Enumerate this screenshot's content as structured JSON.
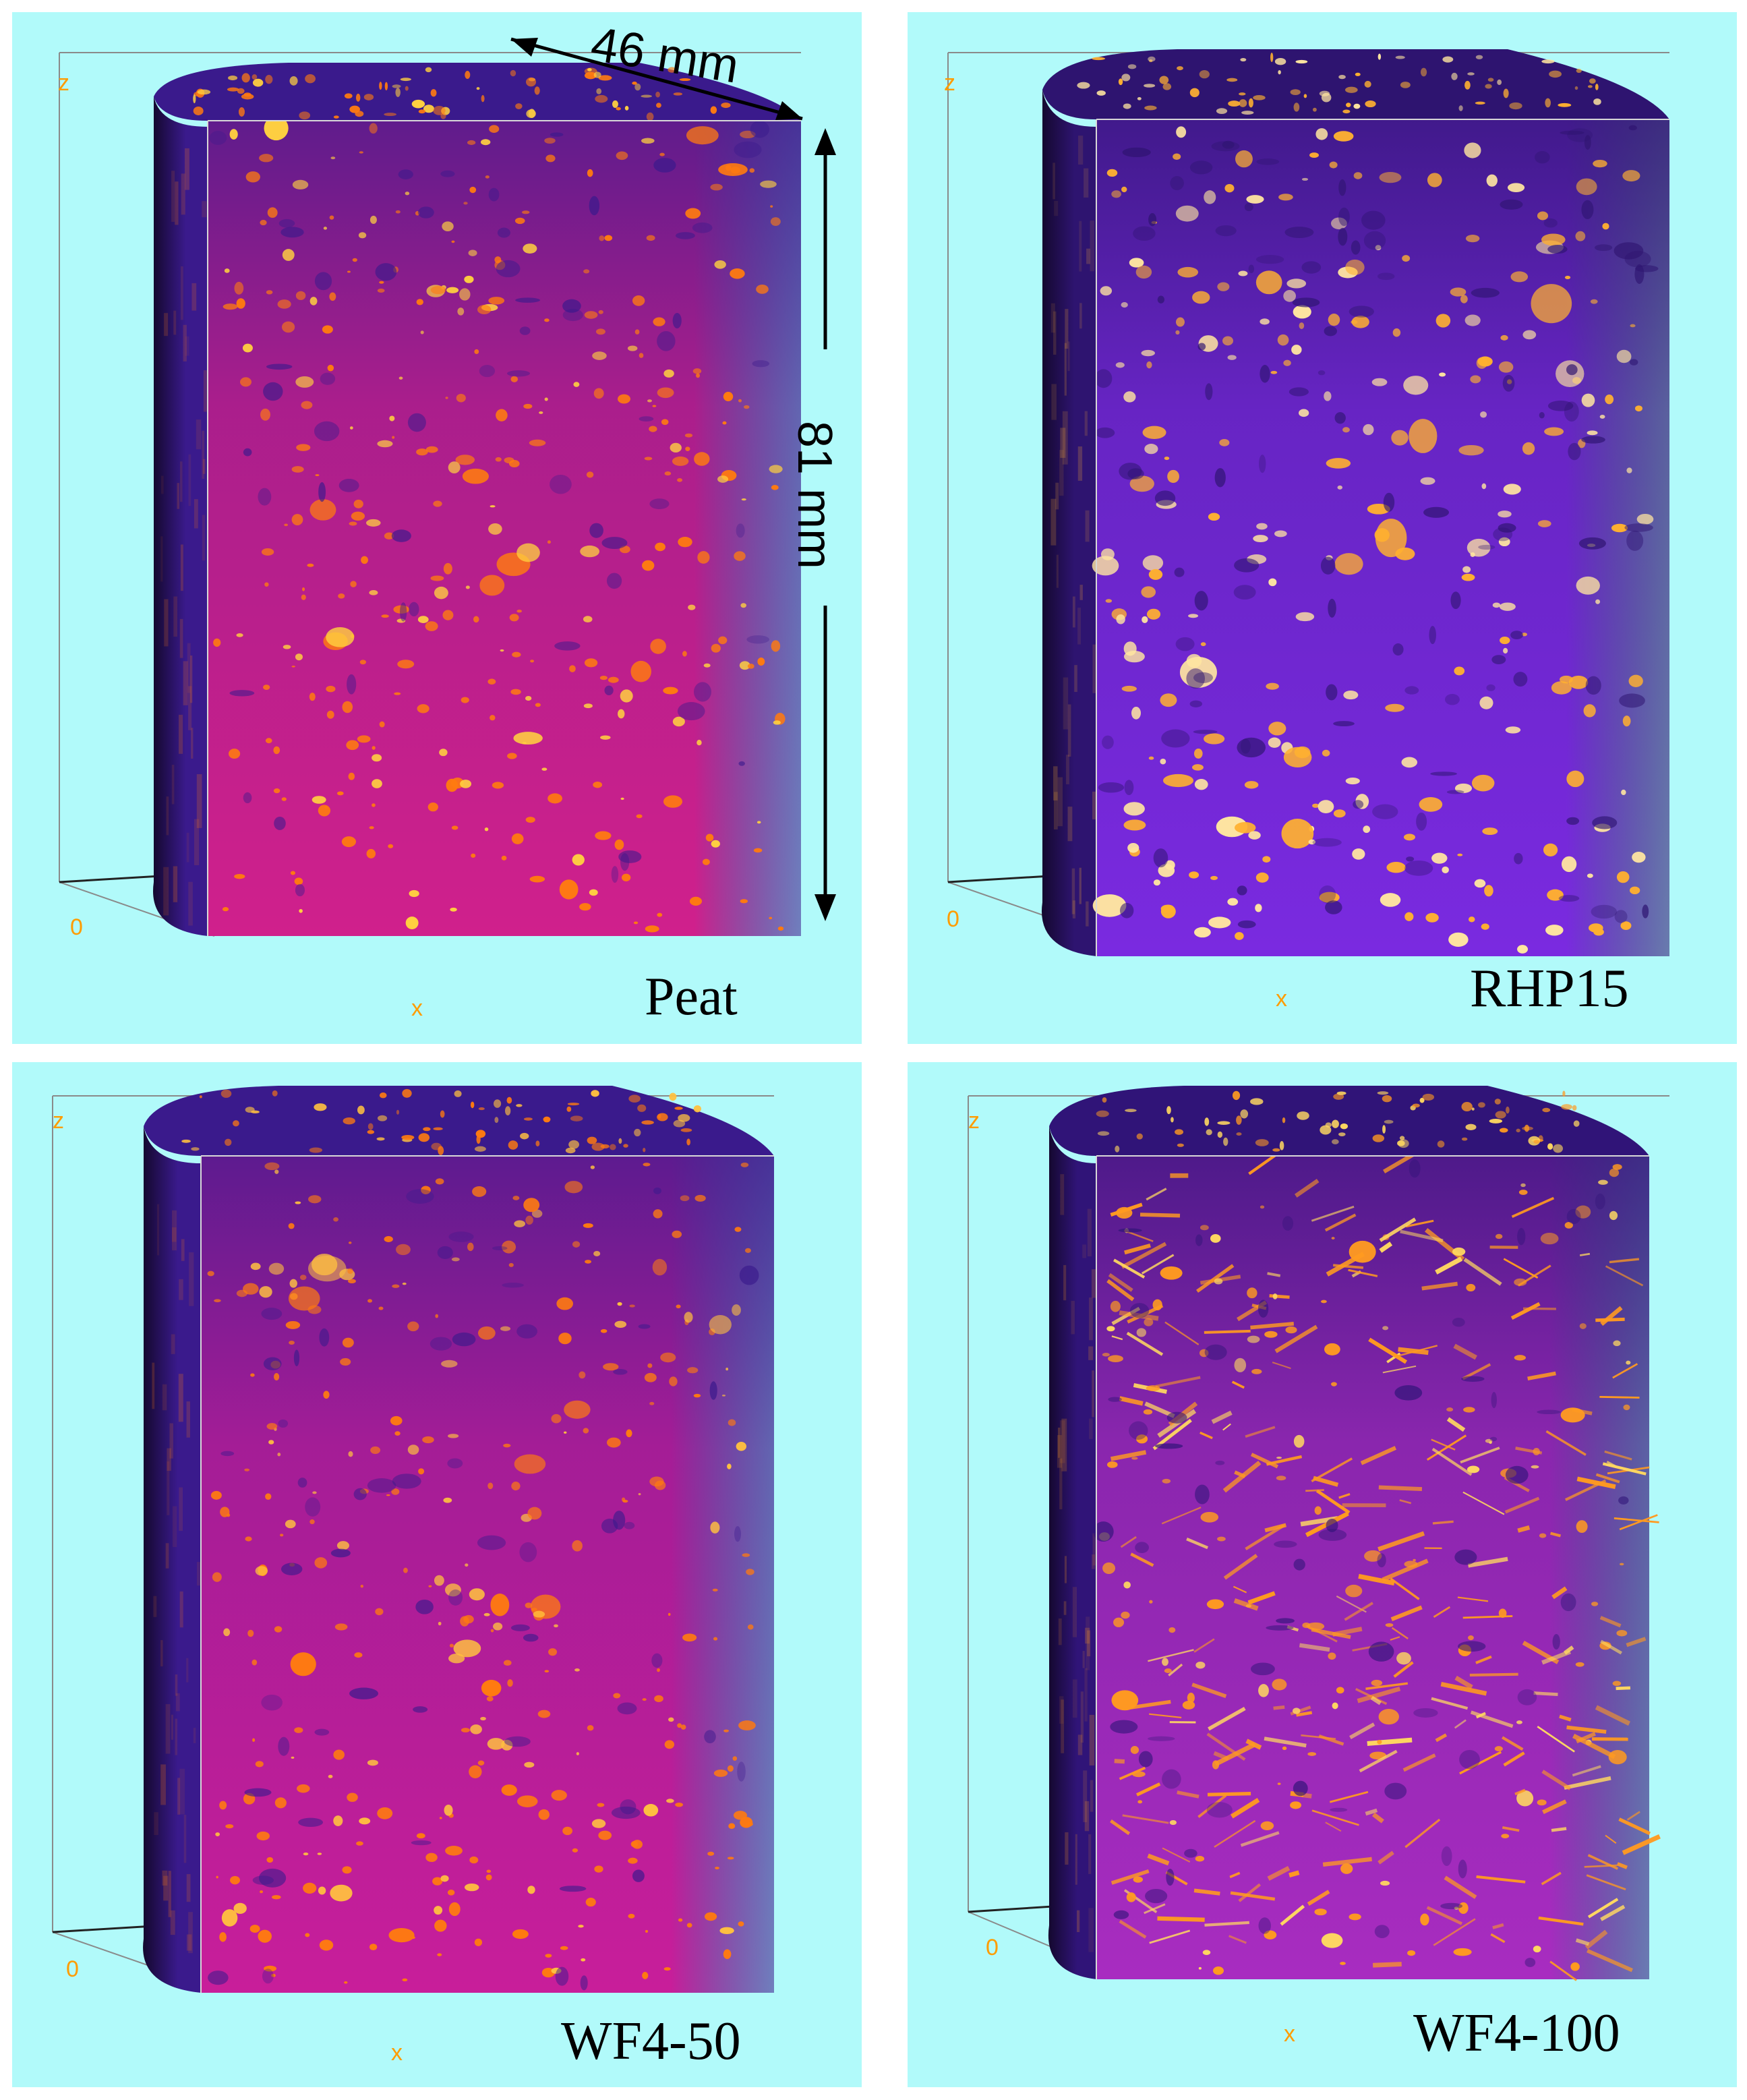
{
  "panels": [
    {
      "label": "Peat",
      "axis": {
        "z": "z",
        "origin": "0",
        "x": "x"
      },
      "colors": {
        "base": "#d0208c",
        "dark": "#3a1a8c",
        "particle": "#ff7a10",
        "bright": "#ffd040"
      }
    },
    {
      "label": "RHP15",
      "axis": {
        "z": "z",
        "origin": "0",
        "x": "x"
      },
      "colors": {
        "base": "#7a2ae0",
        "dark": "#2e1470",
        "particle": "#ffb030",
        "bright": "#ffe6a0"
      }
    },
    {
      "label": "WF4-50",
      "axis": {
        "z": "z",
        "origin": "0",
        "x": "x"
      },
      "colors": {
        "base": "#c81e9a",
        "dark": "#3a1a8c",
        "particle": "#ff7a10",
        "bright": "#ffc040"
      }
    },
    {
      "label": "WF4-100",
      "axis": {
        "z": "z",
        "origin": "0",
        "x": "x"
      },
      "colors": {
        "base": "#a82cc0",
        "dark": "#301478",
        "particle": "#ff9a20",
        "bright": "#ffd860"
      }
    }
  ],
  "dimensions": {
    "width": "46 mm",
    "height": "81 mm"
  },
  "background_color": "#b1fafa"
}
